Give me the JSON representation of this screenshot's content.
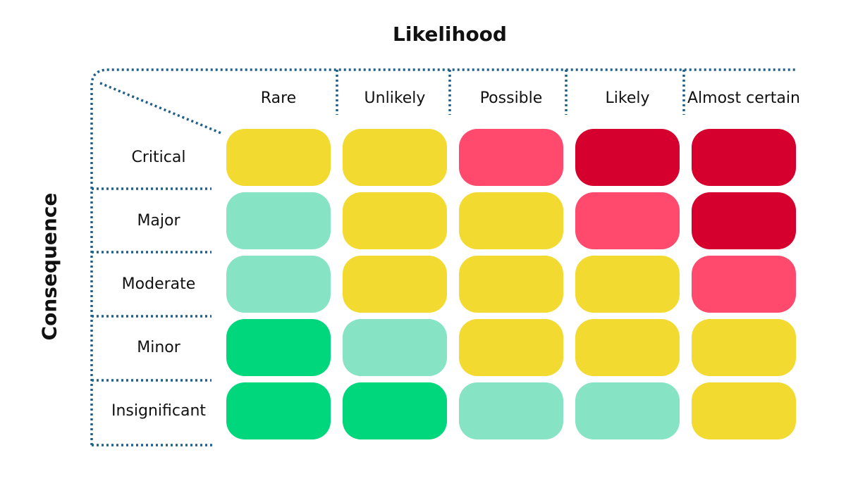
{
  "title": "Likelihood",
  "side_title": "Consequence",
  "columns": [
    "Rare",
    "Unlikely",
    "Possible",
    "Likely",
    "Almost certain"
  ],
  "rows": [
    {
      "label": "Critical",
      "colors": [
        "#f2da30",
        "#f2da30",
        "#ff4a6e",
        "#d6002f",
        "#d6002f"
      ]
    },
    {
      "label": "Major",
      "colors": [
        "#86e3c3",
        "#f2da30",
        "#f2da30",
        "#ff4a6e",
        "#d6002f"
      ]
    },
    {
      "label": "Moderate",
      "colors": [
        "#86e3c3",
        "#f2da30",
        "#f2da30",
        "#f2da30",
        "#ff4a6e"
      ]
    },
    {
      "label": "Minor",
      "colors": [
        "#00d67b",
        "#86e3c3",
        "#f2da30",
        "#f2da30",
        "#f2da30"
      ]
    },
    {
      "label": "Insignificant",
      "colors": [
        "#00d67b",
        "#00d67b",
        "#86e3c3",
        "#86e3c3",
        "#f2da30"
      ]
    }
  ]
}
